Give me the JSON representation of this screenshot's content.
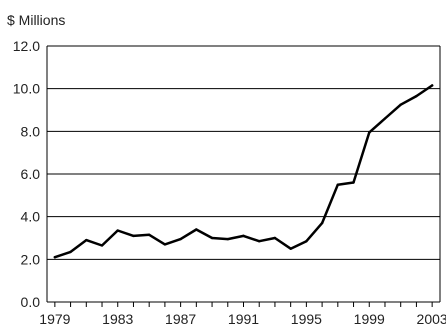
{
  "chart_data": {
    "type": "line",
    "unit_label": "$ Millions",
    "x": [
      1979,
      1980,
      1981,
      1982,
      1983,
      1984,
      1985,
      1986,
      1987,
      1988,
      1989,
      1990,
      1991,
      1992,
      1993,
      1994,
      1995,
      1996,
      1997,
      1998,
      1999,
      2000,
      2001,
      2002,
      2003
    ],
    "y": [
      2.1,
      2.35,
      2.9,
      2.65,
      3.35,
      3.1,
      3.15,
      2.7,
      2.95,
      3.4,
      3.0,
      2.95,
      3.1,
      2.85,
      3.0,
      2.5,
      2.85,
      3.7,
      5.5,
      5.6,
      7.95,
      8.6,
      9.25,
      9.65,
      10.15
    ],
    "xlim": [
      1978.5,
      2003.5
    ],
    "ylim": [
      0,
      12
    ],
    "x_ticks": [
      1979,
      1983,
      1987,
      1991,
      1995,
      1999,
      2003
    ],
    "y_ticks": [
      0,
      2,
      4,
      6,
      8,
      10,
      12
    ],
    "x_tick_labels": [
      "1979",
      "1983",
      "1987",
      "1991",
      "1995",
      "1999",
      "2003"
    ],
    "y_tick_labels": [
      "0.0",
      "2.0",
      "4.0",
      "6.0",
      "8.0",
      "10.0",
      "12.0"
    ],
    "grid": "horizontal",
    "colors": {
      "line": "#000000",
      "grid": "#000000",
      "axis": "#000000",
      "text": "#222222"
    }
  }
}
